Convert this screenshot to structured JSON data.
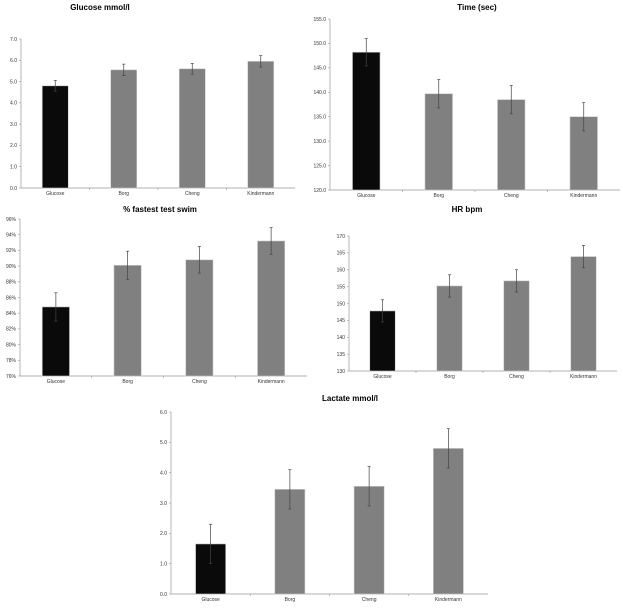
{
  "chart_data": [
    {
      "type": "bar",
      "title": "Glucose mmol/l",
      "categories": [
        "Glucose",
        "Borg",
        "Cheng",
        "Kindermann"
      ],
      "values": [
        4.8,
        5.55,
        5.6,
        5.95
      ],
      "errors": [
        0.25,
        0.27,
        0.25,
        0.27
      ],
      "ylim": [
        0,
        7
      ],
      "yticks": [
        "0.0",
        "1.0",
        "2.0",
        "3.0",
        "4.0",
        "5.0",
        "6.0",
        "7.0"
      ],
      "colors": [
        "#0a0a0a",
        "#808080",
        "#808080",
        "#808080"
      ],
      "xlabel": "",
      "ylabel": "",
      "grid": false
    },
    {
      "type": "bar",
      "title": "Time (sec)",
      "categories": [
        "Glucose",
        "Borg",
        "Cheng",
        "Kindermann"
      ],
      "values": [
        148.2,
        139.7,
        138.5,
        135.0
      ],
      "errors": [
        2.8,
        2.9,
        2.9,
        2.9
      ],
      "ylim": [
        120,
        155
      ],
      "yticks": [
        "120.0",
        "125.0",
        "130.0",
        "135.0",
        "140.0",
        "145.0",
        "150.0",
        "155.0"
      ],
      "colors": [
        "#0a0a0a",
        "#808080",
        "#808080",
        "#808080"
      ],
      "xlabel": "",
      "ylabel": "",
      "grid": false
    },
    {
      "type": "bar",
      "title": "% fastest test swim",
      "categories": [
        "Glucose",
        "Borg",
        "Cheng",
        "Kindermann"
      ],
      "values": [
        84.8,
        90.1,
        90.8,
        93.2
      ],
      "errors": [
        1.8,
        1.8,
        1.7,
        1.7
      ],
      "ylim": [
        76,
        96
      ],
      "yticks": [
        "76%",
        "78%",
        "80%",
        "82%",
        "84%",
        "86%",
        "88%",
        "90%",
        "92%",
        "94%",
        "96%"
      ],
      "colors": [
        "#0a0a0a",
        "#808080",
        "#808080",
        "#808080"
      ],
      "xlabel": "",
      "ylabel": "",
      "grid": false
    },
    {
      "type": "bar",
      "title": "HR bpm",
      "categories": [
        "Glucose",
        "Borg",
        "Cheng",
        "Kindermann"
      ],
      "values": [
        147.8,
        155.2,
        156.7,
        163.9
      ],
      "errors": [
        3.3,
        3.3,
        3.3,
        3.3
      ],
      "ylim": [
        130,
        170
      ],
      "yticks": [
        "130",
        "135",
        "140",
        "145",
        "150",
        "155",
        "160",
        "165",
        "170"
      ],
      "colors": [
        "#0a0a0a",
        "#808080",
        "#808080",
        "#808080"
      ],
      "xlabel": "",
      "ylabel": "",
      "grid": false
    },
    {
      "type": "bar",
      "title": "Lactate mmol/l",
      "categories": [
        "Glucose",
        "Borg",
        "Cheng",
        "Kindermann"
      ],
      "values": [
        1.65,
        3.45,
        3.55,
        4.8
      ],
      "errors": [
        0.65,
        0.65,
        0.65,
        0.65
      ],
      "ylim": [
        0,
        6
      ],
      "yticks": [
        "0.0",
        "1.0",
        "2.0",
        "3.0",
        "4.0",
        "5.0",
        "6.0"
      ],
      "colors": [
        "#0a0a0a",
        "#808080",
        "#808080",
        "#808080"
      ],
      "xlabel": "",
      "ylabel": "",
      "grid": false
    }
  ]
}
